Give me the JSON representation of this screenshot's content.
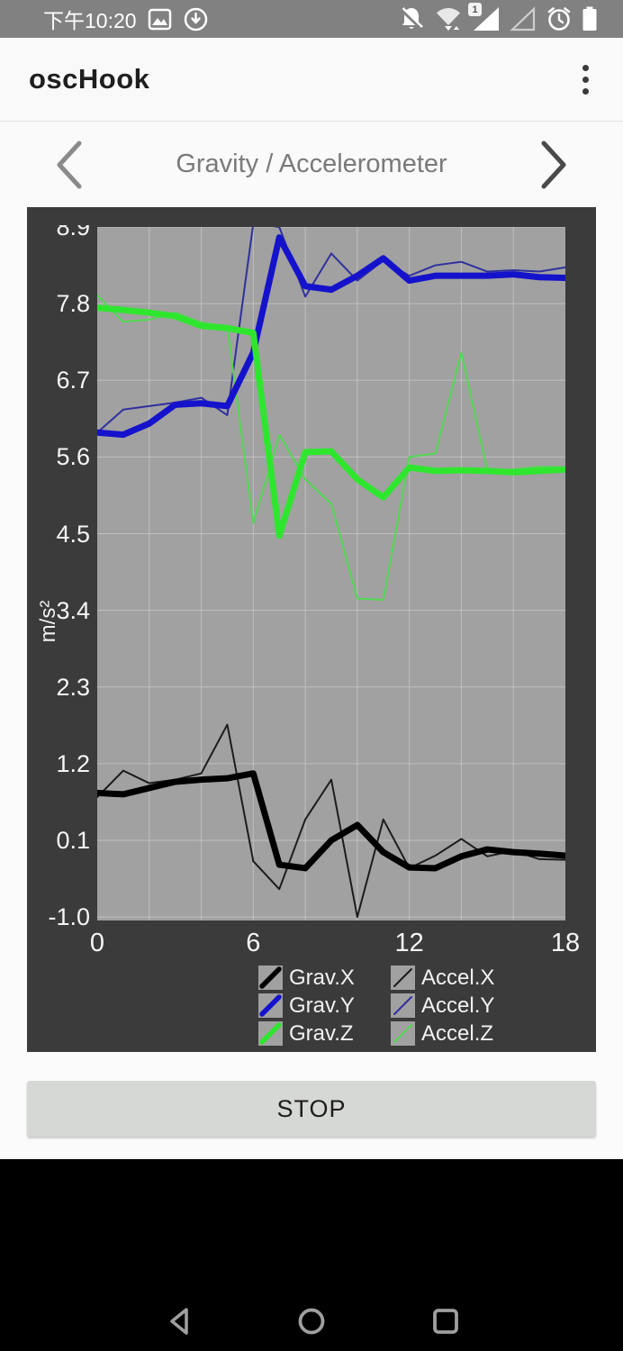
{
  "status_bar": {
    "time": "下午10:20",
    "sim_badge": "1",
    "left_icons": [
      "image-icon",
      "sync-download-icon"
    ],
    "right_icons": [
      "bell-muted-icon",
      "wifi-arrows-icon",
      "signal-triangle-sim1-icon",
      "signal-triangle-empty-icon",
      "alarm-icon",
      "battery-icon"
    ]
  },
  "app_bar": {
    "title": "oscHook",
    "menu_icon": "overflow-menu-icon"
  },
  "pager": {
    "title": "Gravity / Accelerometer",
    "prev_icon": "chevron-left-icon",
    "next_icon": "chevron-right-icon"
  },
  "chart_data": {
    "type": "line",
    "title": "Gravity / Accelerometer",
    "xlabel": "",
    "ylabel": "m/s²",
    "xlim": [
      0,
      18
    ],
    "ylim": [
      -1.05,
      8.9
    ],
    "x_ticks": [
      0,
      6,
      12,
      18
    ],
    "y_ticks": [
      8.9,
      7.8,
      6.7,
      5.6,
      4.5,
      3.4,
      2.3,
      1.2,
      0.1,
      -1.0
    ],
    "x_grid_step": 2,
    "grid": true,
    "legend_position": "bottom",
    "plot_bg": "#a1a1a1",
    "outer_bg": "#3b3b3b",
    "grid_color": "#c9c9c9",
    "x": [
      0,
      1,
      2,
      3,
      4,
      5,
      6,
      7,
      8,
      9,
      10,
      11,
      12,
      13,
      14,
      15,
      16,
      17,
      18
    ],
    "series": [
      {
        "name": "Grav.X",
        "color": "#000000",
        "thick": true,
        "values": [
          0.78,
          0.76,
          0.85,
          0.94,
          0.97,
          0.99,
          1.06,
          -0.25,
          -0.3,
          0.1,
          0.32,
          -0.07,
          -0.29,
          -0.3,
          -0.13,
          -0.03,
          -0.07,
          -0.09,
          -0.12
        ]
      },
      {
        "name": "Grav.Y",
        "color": "#1512cc",
        "thick": true,
        "values": [
          5.95,
          5.92,
          6.08,
          6.35,
          6.37,
          6.33,
          7.1,
          8.75,
          8.05,
          8.0,
          8.2,
          8.45,
          8.13,
          8.2,
          8.2,
          8.2,
          8.22,
          8.18,
          8.17
        ]
      },
      {
        "name": "Grav.Z",
        "color": "#2fe62f",
        "thick": true,
        "values": [
          7.74,
          7.71,
          7.67,
          7.62,
          7.48,
          7.45,
          7.38,
          4.47,
          5.67,
          5.68,
          5.28,
          5.02,
          5.45,
          5.4,
          5.41,
          5.4,
          5.38,
          5.4,
          5.42
        ]
      },
      {
        "name": "Accel.X",
        "color": "#1c1c1c",
        "thick": false,
        "values": [
          0.72,
          1.1,
          0.92,
          0.97,
          1.06,
          1.76,
          -0.2,
          -0.6,
          0.4,
          0.97,
          -1.0,
          0.4,
          -0.3,
          -0.12,
          0.12,
          -0.13,
          -0.05,
          -0.17,
          -0.18
        ]
      },
      {
        "name": "Accel.Y",
        "color": "#30309e",
        "thick": false,
        "values": [
          5.95,
          6.28,
          6.33,
          6.38,
          6.45,
          6.2,
          8.95,
          8.9,
          7.9,
          8.52,
          8.13,
          8.42,
          8.2,
          8.35,
          8.4,
          8.26,
          8.28,
          8.26,
          8.32
        ]
      },
      {
        "name": "Accel.Z",
        "color": "#52d852",
        "thick": false,
        "values": [
          7.92,
          7.54,
          7.57,
          7.67,
          7.53,
          7.47,
          4.65,
          5.92,
          5.28,
          4.93,
          3.57,
          3.55,
          5.6,
          5.65,
          7.1,
          5.4,
          5.42,
          5.46,
          5.45
        ]
      }
    ]
  },
  "stop_button": {
    "label": "STOP"
  },
  "android_nav": {
    "icons": [
      "back-icon",
      "home-icon",
      "recents-icon"
    ]
  }
}
